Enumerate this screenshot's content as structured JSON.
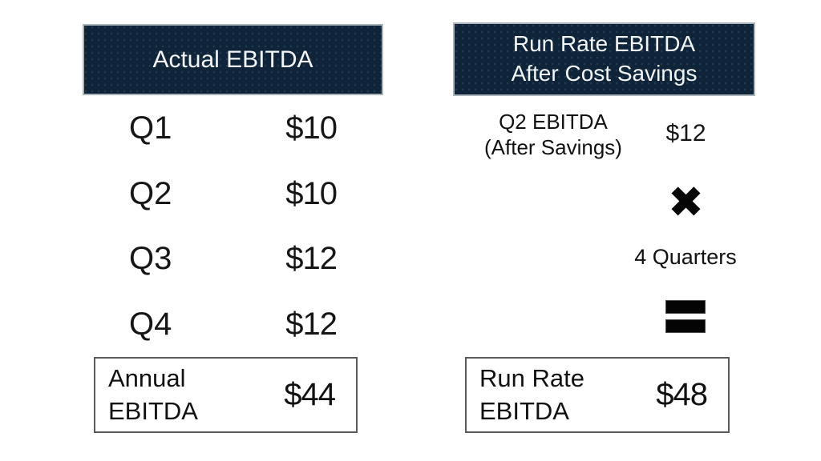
{
  "slide": {
    "background": "#ffffff"
  },
  "colors": {
    "header_bg": "#0f2438",
    "header_text": "#f2f5f7",
    "body_text": "#161616",
    "total_box_border": "#5a5a5a",
    "header_outline": "#aab4bb",
    "icon_color": "#040404"
  },
  "left_panel": {
    "header_label": "Actual EBITDA",
    "rows": [
      {
        "label": "Q1",
        "value": "$10"
      },
      {
        "label": "Q2",
        "value": "$10"
      },
      {
        "label": "Q3",
        "value": "$12"
      },
      {
        "label": "Q4",
        "value": "$12"
      }
    ],
    "total": {
      "label_line1": "Annual",
      "label_line2": "EBITDA",
      "value": "$44"
    }
  },
  "right_panel": {
    "header_line1": "Run Rate EBITDA",
    "header_line2": "After Cost Savings",
    "item": {
      "label_line1": "Q2 EBITDA",
      "label_line2": "(After Savings)",
      "value": "$12"
    },
    "icons": {
      "multiply": "✖",
      "equals": "="
    },
    "multiplier_label": "4 Quarters",
    "total": {
      "label_line1": "Run Rate",
      "label_line2": "EBITDA",
      "value": "$48"
    }
  }
}
